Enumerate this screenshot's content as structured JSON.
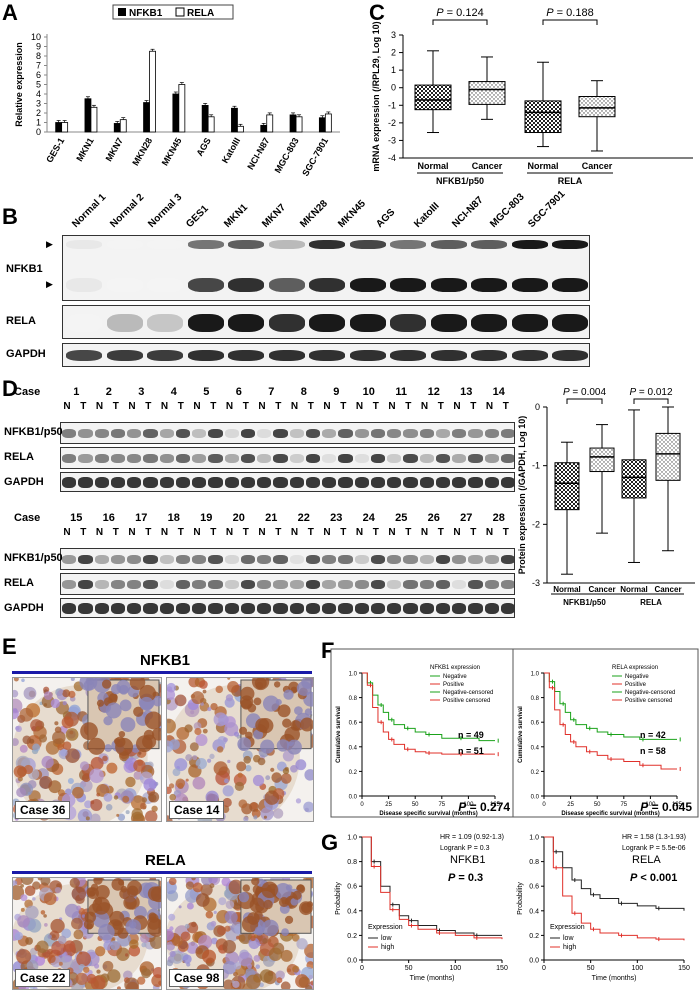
{
  "panels": {
    "A": "A",
    "B": "B",
    "C": "C",
    "D": "D",
    "E": "E",
    "F": "F",
    "G": "G"
  },
  "chart_data": [
    {
      "id": "A",
      "type": "bar",
      "legend": [
        "NFKB1",
        "RELA"
      ],
      "ylabel": "Relative expression",
      "ylim": [
        0,
        10
      ],
      "yticks": [
        "0",
        "1",
        "2",
        "3",
        "4",
        "5",
        "6",
        "7",
        "8",
        "9",
        "10"
      ],
      "categories": [
        "GES-1",
        "MKN1",
        "MKN7",
        "MKN28",
        "MKN45",
        "AGS",
        "KatoIII",
        "NCI-N87",
        "MGC-803",
        "SGC-7901"
      ],
      "series": [
        {
          "name": "NFKB1",
          "values": [
            1.0,
            3.5,
            0.9,
            3.1,
            4.0,
            2.8,
            2.5,
            0.7,
            1.8,
            1.5
          ]
        },
        {
          "name": "RELA",
          "values": [
            1.0,
            2.6,
            1.3,
            8.5,
            5.0,
            1.6,
            0.6,
            1.8,
            1.6,
            1.9
          ]
        }
      ]
    },
    {
      "id": "C",
      "type": "box",
      "ylabel": "mRNA expression (/RPL29, Log 10)",
      "ylim": [
        -4,
        3
      ],
      "yticks": [
        "3",
        "2",
        "1",
        "0",
        "-1",
        "-2",
        "-3",
        "-4"
      ],
      "categories": [
        "Normal",
        "Cancer",
        "Normal",
        "Cancer"
      ],
      "groups": [
        "NFKB1/p50",
        "RELA"
      ],
      "pvalues": [
        "P = 0.124",
        "P = 0.188"
      ],
      "boxes": [
        {
          "min": -2.55,
          "q1": -1.25,
          "median": -0.7,
          "q3": 0.15,
          "max": 2.1,
          "pattern": "check"
        },
        {
          "min": -1.8,
          "q1": -0.95,
          "median": -0.1,
          "q3": 0.35,
          "max": 1.75,
          "pattern": "dots"
        },
        {
          "min": -3.35,
          "q1": -2.55,
          "median": -1.4,
          "q3": -0.75,
          "max": 1.45,
          "pattern": "check"
        },
        {
          "min": -3.6,
          "q1": -1.65,
          "median": -1.15,
          "q3": -0.5,
          "max": 0.4,
          "pattern": "dots"
        }
      ]
    },
    {
      "id": "D-plot",
      "type": "box",
      "ylabel": "Protein expression (/GAPDH, Log 10)",
      "ylim": [
        -3,
        0
      ],
      "yticks": [
        "0",
        "-1",
        "-2",
        "-3"
      ],
      "categories": [
        "Normal",
        "Cancer",
        "Normal",
        "Cancer"
      ],
      "groups": [
        "NFKB1/p50",
        "RELA"
      ],
      "pvalues": [
        "P = 0.004",
        "P = 0.012"
      ],
      "boxes": [
        {
          "min": -2.85,
          "q1": -1.75,
          "median": -1.3,
          "q3": -0.95,
          "max": -0.6,
          "pattern": "check"
        },
        {
          "min": -2.15,
          "q1": -1.1,
          "median": -0.85,
          "q3": -0.7,
          "max": -0.3,
          "pattern": "dots"
        },
        {
          "min": -2.65,
          "q1": -1.55,
          "median": -1.2,
          "q3": -0.9,
          "max": -0.05,
          "pattern": "check"
        },
        {
          "min": -2.45,
          "q1": -1.25,
          "median": -0.8,
          "q3": -0.45,
          "max": 0.0,
          "pattern": "dots"
        }
      ]
    },
    {
      "id": "F-NFKB1",
      "type": "line",
      "xlabel": "Disease specific survival (months)",
      "ylabel": "Cumulative survival",
      "xticks": [
        "0",
        "25",
        "50",
        "75",
        "100",
        "125"
      ],
      "yticks": [
        "0.0",
        "0.2",
        "0.4",
        "0.6",
        "0.8",
        "1.0"
      ],
      "legend_title": "NFKB1 expression",
      "legend": [
        "Negative",
        "Positive",
        "Negative-censored",
        "Positive censored"
      ],
      "n_labels": [
        "n = 49",
        "n = 51"
      ],
      "pvalue": "P = 0.274",
      "series": [
        {
          "name": "Negative",
          "x": [
            0,
            5,
            10,
            15,
            20,
            25,
            30,
            40,
            50,
            60,
            75,
            90,
            110,
            125
          ],
          "y": [
            1.0,
            0.92,
            0.82,
            0.74,
            0.68,
            0.62,
            0.58,
            0.55,
            0.52,
            0.5,
            0.47,
            0.47,
            0.45,
            0.45
          ]
        },
        {
          "name": "Positive",
          "x": [
            0,
            5,
            10,
            15,
            20,
            25,
            30,
            40,
            50,
            60,
            75,
            90,
            110,
            125
          ],
          "y": [
            1.0,
            0.9,
            0.72,
            0.6,
            0.52,
            0.46,
            0.42,
            0.38,
            0.36,
            0.35,
            0.34,
            0.34,
            0.34,
            0.34
          ]
        }
      ]
    },
    {
      "id": "F-RELA",
      "type": "line",
      "xlabel": "Disease specific survival (months)",
      "ylabel": "Cumulative survival",
      "xticks": [
        "0",
        "25",
        "50",
        "75",
        "100",
        "125"
      ],
      "yticks": [
        "0.0",
        "0.2",
        "0.4",
        "0.6",
        "0.8",
        "1.0"
      ],
      "legend_title": "RELA expression",
      "legend": [
        "Negative",
        "Positive",
        "Negative-censored",
        "Positive censored"
      ],
      "n_labels": [
        "n = 42",
        "n = 58"
      ],
      "pvalue": "P = 0.045",
      "series": [
        {
          "name": "Negative",
          "x": [
            0,
            5,
            10,
            15,
            20,
            25,
            30,
            40,
            50,
            60,
            75,
            90,
            110,
            125
          ],
          "y": [
            1.0,
            0.93,
            0.85,
            0.75,
            0.68,
            0.62,
            0.58,
            0.55,
            0.52,
            0.5,
            0.48,
            0.46,
            0.46,
            0.46
          ]
        },
        {
          "name": "Positive",
          "x": [
            0,
            5,
            10,
            15,
            20,
            25,
            30,
            40,
            50,
            60,
            75,
            90,
            110,
            125
          ],
          "y": [
            1.0,
            0.88,
            0.7,
            0.58,
            0.5,
            0.44,
            0.4,
            0.36,
            0.33,
            0.3,
            0.28,
            0.25,
            0.22,
            0.22
          ]
        }
      ]
    },
    {
      "id": "G-NFKB1",
      "type": "line",
      "xlabel": "Time (months)",
      "ylabel": "Probability",
      "xticks": [
        "0",
        "50",
        "100",
        "150"
      ],
      "yticks": [
        "0.0",
        "0.2",
        "0.4",
        "0.6",
        "0.8",
        "1.0"
      ],
      "hr": "HR = 1.09 (0.92-1.3)",
      "logrank": "Logrank P = 0.3",
      "gene": "NFKB1",
      "pvalue": "P = 0.3",
      "legend_title": "Expression",
      "legend": [
        "low",
        "high"
      ],
      "series": [
        {
          "name": "low",
          "x": [
            0,
            10,
            20,
            30,
            40,
            50,
            60,
            80,
            100,
            120,
            150
          ],
          "y": [
            1.0,
            0.8,
            0.6,
            0.45,
            0.36,
            0.32,
            0.28,
            0.24,
            0.22,
            0.2,
            0.2
          ]
        },
        {
          "name": "high",
          "x": [
            0,
            10,
            20,
            30,
            40,
            50,
            60,
            80,
            100,
            120,
            150
          ],
          "y": [
            1.0,
            0.76,
            0.55,
            0.41,
            0.33,
            0.28,
            0.25,
            0.22,
            0.2,
            0.18,
            0.17
          ]
        }
      ]
    },
    {
      "id": "G-RELA",
      "type": "line",
      "xlabel": "Time (months)",
      "ylabel": "Probability",
      "xticks": [
        "0",
        "50",
        "100",
        "150"
      ],
      "yticks": [
        "0.0",
        "0.2",
        "0.4",
        "0.6",
        "0.8",
        "1.0"
      ],
      "hr": "HR = 1.58 (1.3-1.93)",
      "logrank": "Logrank P = 5.5e-06",
      "gene": "RELA",
      "pvalue": "P < 0.001",
      "legend_title": "Expression",
      "legend": [
        "low",
        "high"
      ],
      "series": [
        {
          "name": "low",
          "x": [
            0,
            10,
            20,
            30,
            40,
            50,
            60,
            80,
            100,
            120,
            150
          ],
          "y": [
            1.0,
            0.88,
            0.75,
            0.65,
            0.58,
            0.53,
            0.5,
            0.46,
            0.44,
            0.42,
            0.4
          ]
        },
        {
          "name": "high",
          "x": [
            0,
            10,
            20,
            30,
            40,
            50,
            60,
            80,
            100,
            120,
            150
          ],
          "y": [
            1.0,
            0.75,
            0.52,
            0.38,
            0.3,
            0.25,
            0.22,
            0.2,
            0.18,
            0.17,
            0.16
          ]
        }
      ]
    }
  ],
  "blotB": {
    "lanes": [
      "Normal 1",
      "Normal 2",
      "Normal 3",
      "GES1",
      "MKN1",
      "MKN7",
      "MKN28",
      "MKN45",
      "AGS",
      "KatoIII",
      "NCI-N87",
      "MGC-803",
      "SGC-7901"
    ],
    "rows": [
      "NFKB1",
      "RELA",
      "GAPDH"
    ],
    "arrow": "▶",
    "nfkb1_upper": [
      0.1,
      0.05,
      0.05,
      0.6,
      0.7,
      0.3,
      0.9,
      0.8,
      0.6,
      0.7,
      0.7,
      1.0,
      1.0
    ],
    "nfkb1_lower": [
      0.1,
      0.05,
      0.05,
      0.8,
      0.9,
      0.7,
      0.9,
      1.0,
      1.0,
      1.0,
      1.0,
      1.0,
      1.0
    ],
    "rela": [
      0.05,
      0.3,
      0.25,
      1.0,
      1.0,
      0.9,
      1.0,
      1.0,
      0.9,
      1.0,
      1.0,
      1.0,
      1.0
    ],
    "gapdh": [
      0.8,
      0.85,
      0.85,
      0.9,
      0.9,
      0.9,
      0.9,
      0.9,
      0.9,
      0.9,
      0.9,
      0.9,
      0.9
    ]
  },
  "blotD": {
    "case_label": "Case",
    "cases_top": [
      "1",
      "2",
      "3",
      "4",
      "5",
      "6",
      "7",
      "8",
      "9",
      "10",
      "11",
      "12",
      "13",
      "14"
    ],
    "cases_bottom": [
      "15",
      "16",
      "17",
      "18",
      "19",
      "20",
      "21",
      "22",
      "23",
      "24",
      "25",
      "26",
      "27",
      "28"
    ],
    "n": "N",
    "t": "T",
    "rows": [
      "NFKB1/p50",
      "RELA",
      "GAPDH"
    ]
  },
  "panelE": {
    "nfkb1_title": "NFKB1",
    "rela_title": "RELA",
    "cases": [
      "Case 36",
      "Case 14",
      "Case 22",
      "Case 98"
    ]
  }
}
